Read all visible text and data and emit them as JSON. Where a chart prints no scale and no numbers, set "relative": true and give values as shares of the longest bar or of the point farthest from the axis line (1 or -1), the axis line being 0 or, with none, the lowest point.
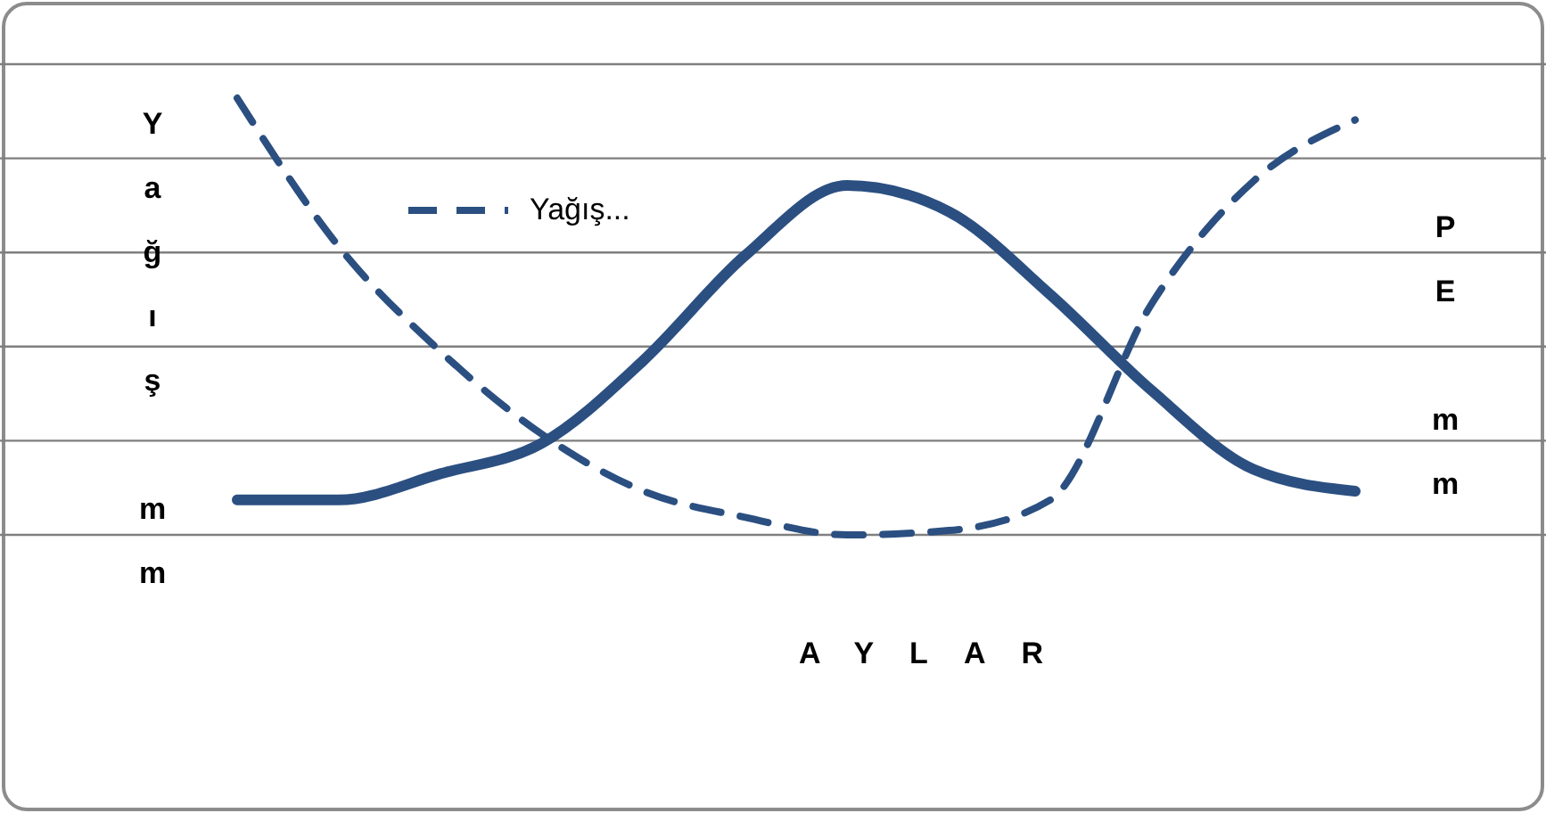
{
  "chart_data": {
    "type": "line",
    "relative": true,
    "ylabel": "Yağış mm",
    "y2label": "PE mm",
    "xlabel": "AYLAR",
    "grid": "y",
    "legend": "top left",
    "marker": "none",
    "categories": [
      null,
      null,
      null,
      null,
      null,
      null,
      null,
      null,
      null,
      null,
      null,
      null
    ],
    "series": [
      {
        "name": "Yağış...",
        "color": "#2b4f81",
        "line_style": "dashed",
        "values": [
          1.0,
          0.66,
          0.42,
          0.23,
          0.1,
          0.04,
          0.0,
          0.01,
          0.08,
          0.53,
          0.81,
          0.95
        ]
      },
      {
        "color": "#2b4f81",
        "line_style": "solid",
        "values": [
          0.08,
          0.08,
          0.14,
          0.21,
          0.4,
          0.64,
          0.8,
          0.74,
          0.55,
          0.33,
          0.15,
          0.1
        ]
      }
    ]
  }
}
